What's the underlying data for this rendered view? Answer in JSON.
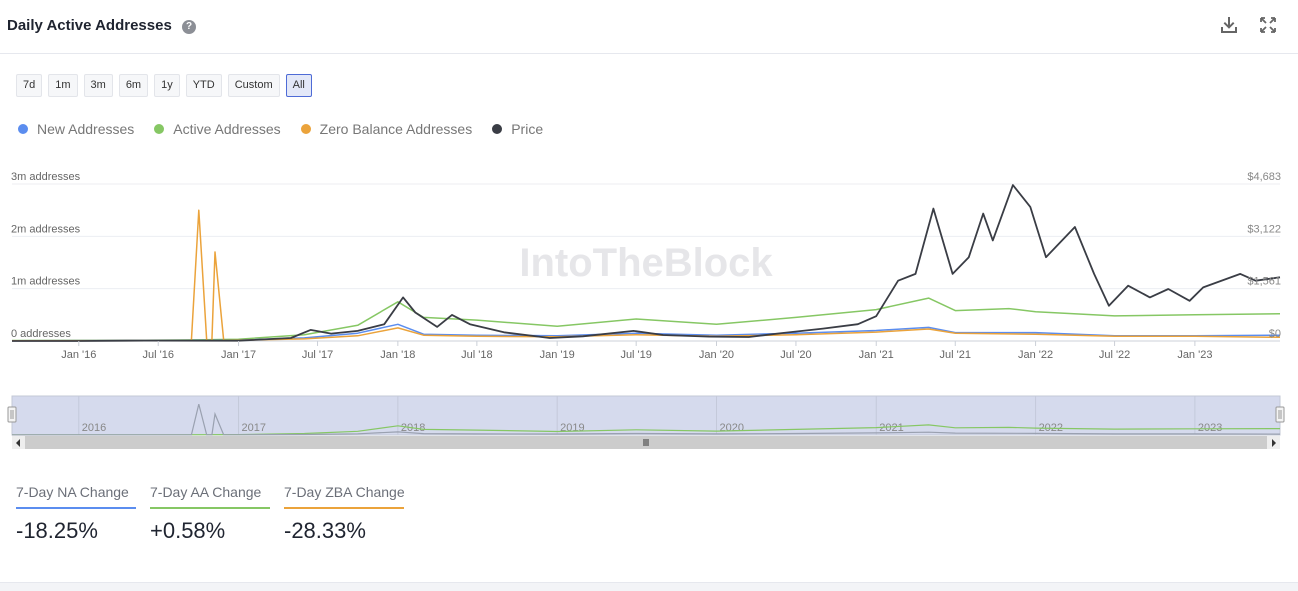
{
  "header": {
    "title": "Daily Active Addresses",
    "help_icon": "question-circle-icon",
    "download_icon": "download-icon",
    "fullscreen_icon": "expand-icon"
  },
  "range_buttons": [
    {
      "label": "7d",
      "active": false
    },
    {
      "label": "1m",
      "active": false
    },
    {
      "label": "3m",
      "active": false
    },
    {
      "label": "6m",
      "active": false
    },
    {
      "label": "1y",
      "active": false
    },
    {
      "label": "YTD",
      "active": false
    },
    {
      "label": "Custom",
      "active": false
    },
    {
      "label": "All",
      "active": true
    }
  ],
  "legend": [
    {
      "label": "New Addresses",
      "color": "#5b8def"
    },
    {
      "label": "Active Addresses",
      "color": "#86c764"
    },
    {
      "label": "Zero Balance Addresses",
      "color": "#eba33b"
    },
    {
      "label": "Price",
      "color": "#3a3d45"
    }
  ],
  "watermark": "IntoTheBlock",
  "stats": [
    {
      "label": "7-Day NA Change",
      "value": "-18.25%",
      "color": "#5b8def"
    },
    {
      "label": "7-Day AA Change",
      "value": "+0.58%",
      "color": "#86c764"
    },
    {
      "label": "7-Day ZBA Change",
      "value": "-28.33%",
      "color": "#eba33b"
    }
  ],
  "chart_data": {
    "type": "line",
    "x_tick_labels": [
      "Jan '16",
      "Jul '16",
      "Jan '17",
      "Jul '17",
      "Jan '18",
      "Jul '18",
      "Jan '19",
      "Jul '19",
      "Jan '20",
      "Jul '20",
      "Jan '21",
      "Jul '21",
      "Jan '22",
      "Jul '22",
      "Jan '23"
    ],
    "navigator_labels": [
      "2016",
      "2017",
      "2018",
      "2019",
      "2020",
      "2021",
      "2022",
      "2023"
    ],
    "y_left_ticks": [
      "0 addresses",
      "1m addresses",
      "2m addresses",
      "3m addresses"
    ],
    "y_left_range": [
      0,
      3000000
    ],
    "y_right_ticks": [
      "$0",
      "$1,561",
      "$3,122",
      "$4,683"
    ],
    "y_right_range": [
      0,
      4683
    ],
    "x_range": [
      "2015-08-01",
      "2023-07-15"
    ],
    "grid": true,
    "legend_position": "top-left",
    "series": [
      {
        "name": "New Addresses",
        "axis": "left",
        "color": "#5b8def",
        "points": [
          [
            "2015-08-01",
            5000
          ],
          [
            "2016-06-01",
            10000
          ],
          [
            "2017-01-01",
            15000
          ],
          [
            "2017-06-01",
            60000
          ],
          [
            "2017-10-01",
            150000
          ],
          [
            "2018-01-01",
            320000
          ],
          [
            "2018-03-01",
            130000
          ],
          [
            "2018-07-01",
            110000
          ],
          [
            "2019-01-01",
            100000
          ],
          [
            "2019-07-01",
            150000
          ],
          [
            "2020-01-01",
            110000
          ],
          [
            "2020-07-01",
            150000
          ],
          [
            "2021-01-01",
            200000
          ],
          [
            "2021-05-01",
            260000
          ],
          [
            "2021-07-01",
            160000
          ],
          [
            "2022-01-01",
            160000
          ],
          [
            "2022-07-01",
            100000
          ],
          [
            "2023-01-01",
            100000
          ],
          [
            "2023-07-15",
            110000
          ]
        ]
      },
      {
        "name": "Active Addresses",
        "axis": "left",
        "color": "#86c764",
        "points": [
          [
            "2015-08-01",
            10000
          ],
          [
            "2016-06-01",
            15000
          ],
          [
            "2016-10-15",
            25000
          ],
          [
            "2017-01-01",
            35000
          ],
          [
            "2017-06-01",
            120000
          ],
          [
            "2017-10-01",
            300000
          ],
          [
            "2018-01-01",
            750000
          ],
          [
            "2018-03-01",
            450000
          ],
          [
            "2018-07-01",
            400000
          ],
          [
            "2019-01-01",
            280000
          ],
          [
            "2019-07-01",
            420000
          ],
          [
            "2020-01-01",
            320000
          ],
          [
            "2020-07-01",
            450000
          ],
          [
            "2021-01-01",
            600000
          ],
          [
            "2021-05-01",
            820000
          ],
          [
            "2021-07-01",
            580000
          ],
          [
            "2021-11-01",
            620000
          ],
          [
            "2022-01-01",
            560000
          ],
          [
            "2022-07-01",
            480000
          ],
          [
            "2023-01-01",
            500000
          ],
          [
            "2023-07-15",
            520000
          ]
        ]
      },
      {
        "name": "Zero Balance Addresses",
        "axis": "left",
        "color": "#eba33b",
        "points": [
          [
            "2015-08-01",
            5000
          ],
          [
            "2016-09-15",
            10000
          ],
          [
            "2016-10-02",
            2500000
          ],
          [
            "2016-10-20",
            10000
          ],
          [
            "2016-11-01",
            10000
          ],
          [
            "2016-11-08",
            1700000
          ],
          [
            "2016-11-28",
            10000
          ],
          [
            "2017-06-01",
            40000
          ],
          [
            "2017-10-01",
            100000
          ],
          [
            "2018-01-01",
            250000
          ],
          [
            "2018-03-01",
            110000
          ],
          [
            "2018-07-01",
            90000
          ],
          [
            "2019-01-01",
            80000
          ],
          [
            "2019-07-01",
            120000
          ],
          [
            "2020-01-01",
            90000
          ],
          [
            "2020-07-01",
            120000
          ],
          [
            "2021-01-01",
            170000
          ],
          [
            "2021-05-01",
            230000
          ],
          [
            "2021-07-01",
            150000
          ],
          [
            "2022-01-01",
            130000
          ],
          [
            "2022-07-01",
            90000
          ],
          [
            "2023-01-01",
            90000
          ],
          [
            "2023-07-15",
            70000
          ]
        ]
      },
      {
        "name": "Price",
        "axis": "right",
        "color": "#3a3d45",
        "points": [
          [
            "2015-08-01",
            1
          ],
          [
            "2016-01-01",
            1
          ],
          [
            "2016-06-01",
            13
          ],
          [
            "2017-01-01",
            8
          ],
          [
            "2017-05-01",
            90
          ],
          [
            "2017-06-15",
            330
          ],
          [
            "2017-08-01",
            220
          ],
          [
            "2017-10-01",
            300
          ],
          [
            "2017-12-01",
            500
          ],
          [
            "2018-01-13",
            1300
          ],
          [
            "2018-02-10",
            850
          ],
          [
            "2018-04-01",
            420
          ],
          [
            "2018-05-05",
            780
          ],
          [
            "2018-06-15",
            500
          ],
          [
            "2018-09-01",
            260
          ],
          [
            "2018-12-15",
            90
          ],
          [
            "2019-03-01",
            140
          ],
          [
            "2019-06-25",
            300
          ],
          [
            "2019-09-01",
            180
          ],
          [
            "2019-12-15",
            130
          ],
          [
            "2020-03-15",
            120
          ],
          [
            "2020-06-01",
            240
          ],
          [
            "2020-09-01",
            370
          ],
          [
            "2020-11-20",
            500
          ],
          [
            "2021-01-01",
            740
          ],
          [
            "2021-02-20",
            1800
          ],
          [
            "2021-04-01",
            2000
          ],
          [
            "2021-05-12",
            3950
          ],
          [
            "2021-06-25",
            2000
          ],
          [
            "2021-08-01",
            2500
          ],
          [
            "2021-09-03",
            3800
          ],
          [
            "2021-09-25",
            3000
          ],
          [
            "2021-11-10",
            4650
          ],
          [
            "2021-12-20",
            4000
          ],
          [
            "2022-01-25",
            2500
          ],
          [
            "2022-04-01",
            3400
          ],
          [
            "2022-05-15",
            2000
          ],
          [
            "2022-06-18",
            1050
          ],
          [
            "2022-08-01",
            1650
          ],
          [
            "2022-09-20",
            1300
          ],
          [
            "2022-11-01",
            1550
          ],
          [
            "2022-12-20",
            1200
          ],
          [
            "2023-01-20",
            1600
          ],
          [
            "2023-04-15",
            2000
          ],
          [
            "2023-05-20",
            1800
          ],
          [
            "2023-07-15",
            1900
          ]
        ]
      }
    ]
  }
}
